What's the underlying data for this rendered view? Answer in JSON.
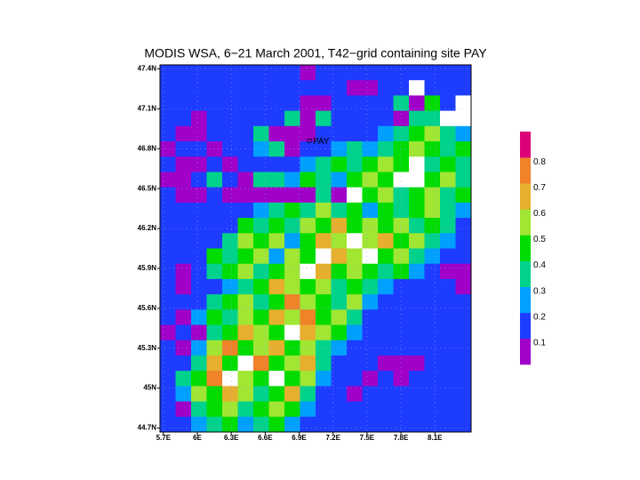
{
  "chart_data": {
    "type": "heatmap",
    "title": "MODIS WSA, 6−21 March 2001, T42−grid containing site PAY",
    "xlim": [
      5.67,
      8.42
    ],
    "ylim": [
      44.67,
      47.43
    ],
    "xticks": [
      {
        "value": 5.7,
        "label": "5.7E"
      },
      {
        "value": 6,
        "label": "6E"
      },
      {
        "value": 6.3,
        "label": "6.3E"
      },
      {
        "value": 6.6,
        "label": "6.6E"
      },
      {
        "value": 6.9,
        "label": "6.9E"
      },
      {
        "value": 7.2,
        "label": "7.2E"
      },
      {
        "value": 7.5,
        "label": "7.5E"
      },
      {
        "value": 7.8,
        "label": "7.8E"
      },
      {
        "value": 8.1,
        "label": "8.1E"
      }
    ],
    "yticks": [
      {
        "value": 47.4,
        "label": "47.4N"
      },
      {
        "value": 47.1,
        "label": "47.1N"
      },
      {
        "value": 46.8,
        "label": "46.8N"
      },
      {
        "value": 46.5,
        "label": "46.5N"
      },
      {
        "value": 46.2,
        "label": "46.2N"
      },
      {
        "value": 45.9,
        "label": "45.9N"
      },
      {
        "value": 45.6,
        "label": "45.6N"
      },
      {
        "value": 45.3,
        "label": "45.3N"
      },
      {
        "value": 45,
        "label": "45N"
      },
      {
        "value": 44.7,
        "label": "44.7N"
      }
    ],
    "grid": true,
    "levels": [
      0.1,
      0.2,
      0.3,
      0.4,
      0.5,
      0.6,
      0.7,
      0.8
    ],
    "colors": [
      "#a000c8",
      "#1e3cff",
      "#00a0ff",
      "#00d28c",
      "#00dc00",
      "#a0e632",
      "#e6af2d",
      "#f08228",
      "#dc0078"
    ],
    "annotation": {
      "text": "PAY",
      "x": 6.99,
      "y": 46.86
    },
    "values": [
      [
        0.15,
        0.15,
        0.15,
        0.15,
        0.15,
        0.15,
        0.15,
        0.15,
        0.15,
        0.05,
        0.15,
        0.15,
        0.15,
        0.15,
        0.15,
        0.15,
        0.15,
        0.15,
        0.15,
        0.15
      ],
      [
        0.15,
        0.15,
        0.15,
        0.15,
        0.15,
        0.15,
        0.15,
        0.15,
        0.15,
        0.15,
        0.15,
        0.15,
        0.05,
        0.05,
        0.15,
        0.15,
        null,
        0.15,
        0.15,
        0.15
      ],
      [
        0.15,
        0.15,
        0.15,
        0.15,
        0.15,
        0.15,
        0.15,
        0.15,
        0.15,
        0.05,
        0.05,
        0.15,
        0.15,
        0.15,
        0.15,
        0.35,
        0.05,
        0.45,
        0.15,
        null
      ],
      [
        0.15,
        0.15,
        0.05,
        0.15,
        0.15,
        0.15,
        0.15,
        0.15,
        0.35,
        0.05,
        0.35,
        0.15,
        0.15,
        0.15,
        0.15,
        0.05,
        0.35,
        0.35,
        null,
        null
      ],
      [
        0.15,
        0.05,
        0.05,
        0.15,
        0.15,
        0.15,
        0.35,
        0.05,
        0.05,
        0.05,
        0.15,
        0.15,
        0.15,
        0.15,
        0.25,
        0.35,
        0.45,
        0.55,
        0.35,
        0.25
      ],
      [
        0.05,
        0.15,
        0.15,
        0.05,
        0.15,
        0.15,
        0.25,
        0.35,
        0.05,
        0.15,
        0.15,
        0.25,
        0.35,
        0.25,
        0.35,
        0.45,
        0.55,
        0.45,
        0.35,
        0.45
      ],
      [
        0.15,
        0.05,
        0.05,
        0.15,
        0.05,
        0.15,
        0.15,
        0.15,
        0.15,
        0.25,
        0.35,
        0.45,
        0.35,
        0.45,
        0.55,
        0.45,
        null,
        0.35,
        0.45,
        0.35
      ],
      [
        0.05,
        0.05,
        0.15,
        0.35,
        0.15,
        0.05,
        0.35,
        0.35,
        0.25,
        0.45,
        0.35,
        0.25,
        0.45,
        0.55,
        0.45,
        null,
        null,
        0.45,
        0.55,
        0.35
      ],
      [
        0.15,
        0.05,
        0.05,
        0.15,
        0.05,
        0.05,
        0.05,
        0.05,
        0.05,
        0.05,
        0.35,
        0.05,
        null,
        0.45,
        0.55,
        0.35,
        0.45,
        0.55,
        0.35,
        0.45
      ],
      [
        0.15,
        0.15,
        0.15,
        0.15,
        0.15,
        0.15,
        0.25,
        0.35,
        0.45,
        0.35,
        0.55,
        0.35,
        0.45,
        0.25,
        0.45,
        0.35,
        0.45,
        0.55,
        0.35,
        0.25
      ],
      [
        0.15,
        0.15,
        0.15,
        0.15,
        0.15,
        0.45,
        0.35,
        0.45,
        0.35,
        0.55,
        0.45,
        0.65,
        0.45,
        0.55,
        0.45,
        0.55,
        0.35,
        0.45,
        0.35,
        0.15
      ],
      [
        0.15,
        0.15,
        0.15,
        0.15,
        0.35,
        0.55,
        0.45,
        0.55,
        0.25,
        0.45,
        0.65,
        0.55,
        null,
        0.55,
        0.65,
        0.45,
        0.55,
        0.35,
        0.25,
        0.15
      ],
      [
        0.15,
        0.15,
        0.15,
        0.45,
        0.35,
        0.45,
        0.55,
        0.25,
        0.55,
        0.45,
        null,
        0.65,
        0.55,
        null,
        0.45,
        0.55,
        0.35,
        0.25,
        0.15,
        0.15
      ],
      [
        0.15,
        0.05,
        0.15,
        0.35,
        0.45,
        0.55,
        0.35,
        0.45,
        0.55,
        null,
        0.65,
        0.45,
        0.55,
        0.45,
        0.35,
        0.45,
        0.25,
        0.15,
        0.05,
        0.05
      ],
      [
        0.15,
        0.05,
        0.15,
        0.15,
        0.25,
        0.35,
        0.45,
        0.65,
        0.55,
        0.45,
        0.55,
        0.35,
        0.45,
        0.35,
        0.25,
        0.15,
        0.15,
        0.15,
        0.15,
        0.05
      ],
      [
        0.15,
        0.15,
        0.15,
        0.35,
        0.45,
        0.55,
        0.35,
        0.45,
        0.75,
        0.55,
        0.45,
        0.35,
        0.55,
        0.25,
        0.15,
        0.15,
        0.15,
        0.15,
        0.15,
        0.15
      ],
      [
        0.15,
        0.05,
        0.25,
        0.45,
        0.35,
        0.55,
        0.45,
        0.65,
        0.55,
        0.75,
        0.45,
        0.55,
        0.35,
        0.15,
        0.15,
        0.15,
        0.15,
        0.15,
        0.15,
        0.15
      ],
      [
        0.05,
        0.15,
        0.05,
        0.35,
        0.45,
        0.65,
        0.55,
        0.45,
        null,
        0.65,
        0.55,
        0.45,
        0.25,
        0.15,
        0.15,
        0.15,
        0.15,
        0.15,
        0.15,
        0.15
      ],
      [
        0.15,
        0.05,
        0.25,
        0.55,
        0.75,
        0.45,
        0.55,
        0.65,
        0.45,
        0.55,
        0.35,
        0.25,
        0.15,
        0.15,
        0.15,
        0.15,
        0.15,
        0.15,
        0.15,
        0.15
      ],
      [
        0.15,
        0.15,
        0.35,
        0.65,
        0.45,
        null,
        0.75,
        0.45,
        0.55,
        0.65,
        0.35,
        0.15,
        0.15,
        0.15,
        0.05,
        0.05,
        0.05,
        0.15,
        0.15,
        0.15
      ],
      [
        0.15,
        0.35,
        0.45,
        0.75,
        null,
        0.55,
        0.45,
        null,
        0.45,
        0.55,
        0.25,
        0.15,
        0.15,
        0.05,
        0.15,
        0.05,
        0.15,
        0.15,
        0.15,
        0.15
      ],
      [
        0.15,
        0.25,
        0.55,
        0.45,
        0.65,
        0.55,
        0.35,
        0.45,
        0.65,
        0.35,
        0.15,
        0.15,
        0.05,
        0.15,
        0.15,
        0.15,
        0.15,
        0.15,
        0.15,
        0.15
      ],
      [
        0.15,
        0.05,
        0.35,
        0.45,
        0.55,
        0.35,
        0.45,
        0.55,
        0.45,
        0.25,
        0.15,
        0.15,
        0.15,
        0.15,
        0.15,
        0.15,
        0.15,
        0.15,
        0.15,
        0.15
      ],
      [
        0.15,
        0.15,
        0.25,
        0.35,
        0.45,
        0.25,
        0.35,
        0.45,
        0.25,
        0.15,
        0.15,
        0.15,
        0.15,
        0.15,
        0.15,
        0.15,
        0.15,
        0.15,
        0.15,
        0.15
      ]
    ]
  }
}
